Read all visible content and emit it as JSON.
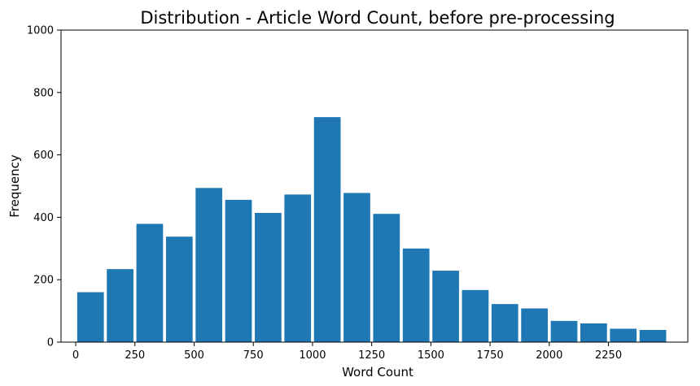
{
  "chart_data": {
    "type": "bar",
    "title": "Distribution - Article Word Count, before pre-processing",
    "xlabel": "Word Count",
    "ylabel": "Frequency",
    "bin_width": 125,
    "bins_start": [
      0,
      125,
      250,
      375,
      500,
      625,
      750,
      875,
      1000,
      1125,
      1250,
      1375,
      1500,
      1625,
      1750,
      1875,
      2000,
      2125,
      2250,
      2375
    ],
    "values": [
      160,
      234,
      379,
      338,
      494,
      456,
      414,
      473,
      721,
      478,
      411,
      300,
      229,
      167,
      122,
      108,
      68,
      60,
      43,
      39
    ],
    "xticks": [
      0,
      250,
      500,
      750,
      1000,
      1250,
      1500,
      1750,
      2000,
      2250
    ],
    "xlim": [
      -62,
      2585
    ],
    "yticks": [
      0,
      200,
      400,
      600,
      800,
      1000
    ],
    "ylim": [
      0,
      1000
    ],
    "bar_color": "#1f77b4",
    "grid": false,
    "legend": "none"
  }
}
